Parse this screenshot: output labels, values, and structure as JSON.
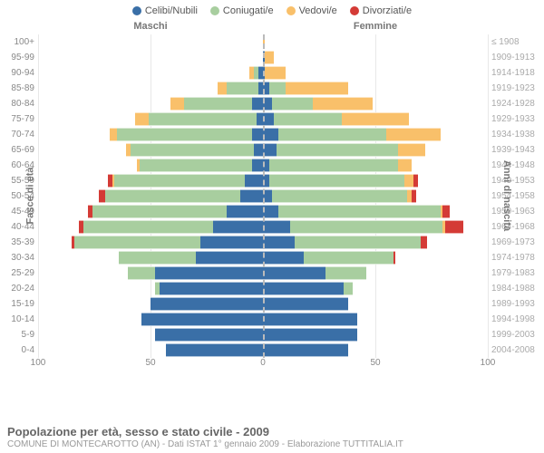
{
  "legend": [
    {
      "label": "Celibi/Nubili",
      "color": "#3a6fa7"
    },
    {
      "label": "Coniugati/e",
      "color": "#a8ce9f"
    },
    {
      "label": "Vedovi/e",
      "color": "#f9c06a"
    },
    {
      "label": "Divorziati/e",
      "color": "#d43b36"
    }
  ],
  "side_labels": {
    "male": "Maschi",
    "female": "Femmine"
  },
  "y_left_title": "Fasce di età",
  "y_right_title": "Anni di nascita",
  "x_max": 100,
  "x_ticks": {
    "left100": "100",
    "left50": "50",
    "zero": "0",
    "right50": "50",
    "right100": "100"
  },
  "title": "Popolazione per età, sesso e stato civile - 2009",
  "subtitle": "COMUNE DI MONTECAROTTO (AN) - Dati ISTAT 1° gennaio 2009 - Elaborazione TUTTITALIA.IT",
  "grid_color": "#e8e8e8",
  "rows": [
    {
      "age": "100+",
      "birth": "≤ 1908",
      "m": {
        "cel": 0,
        "con": 0,
        "ved": 0,
        "div": 0
      },
      "f": {
        "cel": 0,
        "con": 0,
        "ved": 1,
        "div": 0
      }
    },
    {
      "age": "95-99",
      "birth": "1909-1913",
      "m": {
        "cel": 0,
        "con": 0,
        "ved": 0,
        "div": 0
      },
      "f": {
        "cel": 1,
        "con": 0,
        "ved": 4,
        "div": 0
      }
    },
    {
      "age": "90-94",
      "birth": "1914-1918",
      "m": {
        "cel": 2,
        "con": 2,
        "ved": 2,
        "div": 0
      },
      "f": {
        "cel": 1,
        "con": 0,
        "ved": 9,
        "div": 0
      }
    },
    {
      "age": "85-89",
      "birth": "1919-1923",
      "m": {
        "cel": 2,
        "con": 14,
        "ved": 4,
        "div": 0
      },
      "f": {
        "cel": 3,
        "con": 7,
        "ved": 28,
        "div": 0
      }
    },
    {
      "age": "80-84",
      "birth": "1924-1928",
      "m": {
        "cel": 5,
        "con": 30,
        "ved": 6,
        "div": 0
      },
      "f": {
        "cel": 4,
        "con": 18,
        "ved": 27,
        "div": 0
      }
    },
    {
      "age": "75-79",
      "birth": "1929-1933",
      "m": {
        "cel": 3,
        "con": 48,
        "ved": 6,
        "div": 0
      },
      "f": {
        "cel": 5,
        "con": 30,
        "ved": 30,
        "div": 0
      }
    },
    {
      "age": "70-74",
      "birth": "1934-1938",
      "m": {
        "cel": 5,
        "con": 60,
        "ved": 3,
        "div": 0
      },
      "f": {
        "cel": 7,
        "con": 48,
        "ved": 24,
        "div": 0
      }
    },
    {
      "age": "65-69",
      "birth": "1939-1943",
      "m": {
        "cel": 4,
        "con": 55,
        "ved": 2,
        "div": 0
      },
      "f": {
        "cel": 6,
        "con": 54,
        "ved": 12,
        "div": 0
      }
    },
    {
      "age": "60-64",
      "birth": "1944-1948",
      "m": {
        "cel": 5,
        "con": 50,
        "ved": 1,
        "div": 0
      },
      "f": {
        "cel": 3,
        "con": 57,
        "ved": 6,
        "div": 0
      }
    },
    {
      "age": "55-59",
      "birth": "1949-1953",
      "m": {
        "cel": 8,
        "con": 58,
        "ved": 1,
        "div": 2
      },
      "f": {
        "cel": 3,
        "con": 60,
        "ved": 4,
        "div": 2
      }
    },
    {
      "age": "50-54",
      "birth": "1954-1958",
      "m": {
        "cel": 10,
        "con": 60,
        "ved": 0,
        "div": 3
      },
      "f": {
        "cel": 4,
        "con": 60,
        "ved": 2,
        "div": 2
      }
    },
    {
      "age": "45-49",
      "birth": "1959-1963",
      "m": {
        "cel": 16,
        "con": 60,
        "ved": 0,
        "div": 2
      },
      "f": {
        "cel": 7,
        "con": 72,
        "ved": 1,
        "div": 3
      }
    },
    {
      "age": "40-44",
      "birth": "1964-1968",
      "m": {
        "cel": 22,
        "con": 58,
        "ved": 0,
        "div": 2
      },
      "f": {
        "cel": 12,
        "con": 68,
        "ved": 1,
        "div": 8
      }
    },
    {
      "age": "35-39",
      "birth": "1969-1973",
      "m": {
        "cel": 28,
        "con": 56,
        "ved": 0,
        "div": 1
      },
      "f": {
        "cel": 14,
        "con": 56,
        "ved": 0,
        "div": 3
      }
    },
    {
      "age": "30-34",
      "birth": "1974-1978",
      "m": {
        "cel": 30,
        "con": 34,
        "ved": 0,
        "div": 0
      },
      "f": {
        "cel": 18,
        "con": 40,
        "ved": 0,
        "div": 1
      }
    },
    {
      "age": "25-29",
      "birth": "1979-1983",
      "m": {
        "cel": 48,
        "con": 12,
        "ved": 0,
        "div": 0
      },
      "f": {
        "cel": 28,
        "con": 18,
        "ved": 0,
        "div": 0
      }
    },
    {
      "age": "20-24",
      "birth": "1984-1988",
      "m": {
        "cel": 46,
        "con": 2,
        "ved": 0,
        "div": 0
      },
      "f": {
        "cel": 36,
        "con": 4,
        "ved": 0,
        "div": 0
      }
    },
    {
      "age": "15-19",
      "birth": "1989-1993",
      "m": {
        "cel": 50,
        "con": 0,
        "ved": 0,
        "div": 0
      },
      "f": {
        "cel": 38,
        "con": 0,
        "ved": 0,
        "div": 0
      }
    },
    {
      "age": "10-14",
      "birth": "1994-1998",
      "m": {
        "cel": 54,
        "con": 0,
        "ved": 0,
        "div": 0
      },
      "f": {
        "cel": 42,
        "con": 0,
        "ved": 0,
        "div": 0
      }
    },
    {
      "age": "5-9",
      "birth": "1999-2003",
      "m": {
        "cel": 48,
        "con": 0,
        "ved": 0,
        "div": 0
      },
      "f": {
        "cel": 42,
        "con": 0,
        "ved": 0,
        "div": 0
      }
    },
    {
      "age": "0-4",
      "birth": "2004-2008",
      "m": {
        "cel": 43,
        "con": 0,
        "ved": 0,
        "div": 0
      },
      "f": {
        "cel": 38,
        "con": 0,
        "ved": 0,
        "div": 0
      }
    }
  ]
}
